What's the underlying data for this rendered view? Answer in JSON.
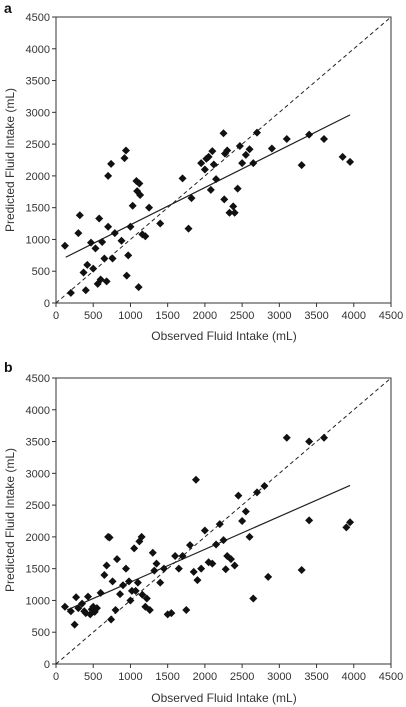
{
  "chart_data": [
    {
      "type": "scatter",
      "panel_label": "a",
      "xlabel": "Observed Fluid Intake (mL)",
      "ylabel": "Predicted Fluid Intake (mL)",
      "xlim": [
        0,
        4500
      ],
      "ylim": [
        0,
        4500
      ],
      "xticks": [
        0,
        500,
        1000,
        1500,
        2000,
        2500,
        3000,
        3500,
        4000,
        4500
      ],
      "yticks": [
        0,
        500,
        1000,
        1500,
        2000,
        2500,
        3000,
        3500,
        4000,
        4500
      ],
      "grid": false,
      "marker": "diamond",
      "points": [
        [
          120,
          900
        ],
        [
          200,
          160
        ],
        [
          300,
          1100
        ],
        [
          320,
          1380
        ],
        [
          370,
          480
        ],
        [
          400,
          200
        ],
        [
          420,
          600
        ],
        [
          470,
          950
        ],
        [
          500,
          540
        ],
        [
          530,
          860
        ],
        [
          560,
          300
        ],
        [
          580,
          1330
        ],
        [
          600,
          370
        ],
        [
          620,
          960
        ],
        [
          650,
          700
        ],
        [
          680,
          340
        ],
        [
          700,
          1200
        ],
        [
          700,
          2000
        ],
        [
          740,
          2190
        ],
        [
          760,
          700
        ],
        [
          790,
          1100
        ],
        [
          880,
          980
        ],
        [
          920,
          2280
        ],
        [
          940,
          2400
        ],
        [
          950,
          430
        ],
        [
          970,
          750
        ],
        [
          1000,
          1200
        ],
        [
          1030,
          1530
        ],
        [
          1080,
          1920
        ],
        [
          1090,
          1760
        ],
        [
          1110,
          250
        ],
        [
          1120,
          1880
        ],
        [
          1130,
          1700
        ],
        [
          1160,
          1080
        ],
        [
          1200,
          1050
        ],
        [
          1250,
          1500
        ],
        [
          1400,
          1250
        ],
        [
          1700,
          1960
        ],
        [
          1780,
          1170
        ],
        [
          1820,
          1650
        ],
        [
          1950,
          2200
        ],
        [
          2000,
          2100
        ],
        [
          2020,
          2270
        ],
        [
          2050,
          2300
        ],
        [
          2080,
          1780
        ],
        [
          2100,
          2390
        ],
        [
          2120,
          2180
        ],
        [
          2150,
          1950
        ],
        [
          2250,
          2670
        ],
        [
          2260,
          1630
        ],
        [
          2270,
          2350
        ],
        [
          2300,
          2400
        ],
        [
          2330,
          1420
        ],
        [
          2380,
          1520
        ],
        [
          2400,
          1420
        ],
        [
          2440,
          1800
        ],
        [
          2470,
          2470
        ],
        [
          2500,
          2200
        ],
        [
          2550,
          2330
        ],
        [
          2600,
          2420
        ],
        [
          2650,
          2200
        ],
        [
          2700,
          2680
        ],
        [
          2900,
          2430
        ],
        [
          3100,
          2580
        ],
        [
          3300,
          2170
        ],
        [
          3400,
          2650
        ],
        [
          3600,
          2580
        ],
        [
          3850,
          2300
        ],
        [
          3950,
          2220
        ]
      ],
      "reference_line": {
        "from": [
          0,
          0
        ],
        "to": [
          4500,
          4500
        ],
        "style": "dashed"
      },
      "fit_line": {
        "from": [
          130,
          720
        ],
        "to": [
          3950,
          2960
        ],
        "style": "solid"
      }
    },
    {
      "type": "scatter",
      "panel_label": "b",
      "xlabel": "Observed Fluid Intake (mL)",
      "ylabel": "Predicted Fluid Intake (mL)",
      "xlim": [
        0,
        4500
      ],
      "ylim": [
        0,
        4500
      ],
      "xticks": [
        0,
        500,
        1000,
        1500,
        2000,
        2500,
        3000,
        3500,
        4000,
        4500
      ],
      "yticks": [
        0,
        500,
        1000,
        1500,
        2000,
        2500,
        3000,
        3500,
        4000,
        4500
      ],
      "grid": false,
      "marker": "diamond",
      "points": [
        [
          120,
          900
        ],
        [
          200,
          830
        ],
        [
          250,
          620
        ],
        [
          270,
          1050
        ],
        [
          300,
          880
        ],
        [
          350,
          950
        ],
        [
          380,
          830
        ],
        [
          400,
          800
        ],
        [
          430,
          1060
        ],
        [
          460,
          780
        ],
        [
          480,
          860
        ],
        [
          500,
          900
        ],
        [
          520,
          820
        ],
        [
          550,
          880
        ],
        [
          600,
          1120
        ],
        [
          650,
          1400
        ],
        [
          680,
          1550
        ],
        [
          700,
          2000
        ],
        [
          720,
          1990
        ],
        [
          740,
          700
        ],
        [
          760,
          1300
        ],
        [
          800,
          850
        ],
        [
          820,
          1650
        ],
        [
          860,
          1100
        ],
        [
          900,
          1240
        ],
        [
          940,
          1500
        ],
        [
          980,
          1300
        ],
        [
          1000,
          1000
        ],
        [
          1020,
          1150
        ],
        [
          1050,
          1820
        ],
        [
          1070,
          1150
        ],
        [
          1100,
          1280
        ],
        [
          1120,
          1930
        ],
        [
          1150,
          2000
        ],
        [
          1160,
          1090
        ],
        [
          1200,
          900
        ],
        [
          1220,
          1030
        ],
        [
          1260,
          850
        ],
        [
          1300,
          1750
        ],
        [
          1320,
          1470
        ],
        [
          1350,
          1580
        ],
        [
          1400,
          1280
        ],
        [
          1450,
          1500
        ],
        [
          1500,
          780
        ],
        [
          1550,
          800
        ],
        [
          1600,
          1700
        ],
        [
          1650,
          1500
        ],
        [
          1700,
          1700
        ],
        [
          1750,
          850
        ],
        [
          1800,
          1870
        ],
        [
          1850,
          1450
        ],
        [
          1880,
          2900
        ],
        [
          1900,
          1320
        ],
        [
          1950,
          1500
        ],
        [
          2000,
          2100
        ],
        [
          2050,
          1600
        ],
        [
          2100,
          1580
        ],
        [
          2150,
          1880
        ],
        [
          2200,
          2200
        ],
        [
          2250,
          1950
        ],
        [
          2280,
          1490
        ],
        [
          2300,
          1700
        ],
        [
          2350,
          1650
        ],
        [
          2400,
          1550
        ],
        [
          2450,
          2650
        ],
        [
          2500,
          2250
        ],
        [
          2550,
          2400
        ],
        [
          2600,
          2000
        ],
        [
          2650,
          1030
        ],
        [
          2700,
          2700
        ],
        [
          2800,
          2800
        ],
        [
          2850,
          1370
        ],
        [
          3100,
          3560
        ],
        [
          3300,
          1480
        ],
        [
          3400,
          3500
        ],
        [
          3600,
          3560
        ],
        [
          3900,
          2150
        ],
        [
          3950,
          2230
        ],
        [
          3400,
          2260
        ]
      ],
      "reference_line": {
        "from": [
          0,
          0
        ],
        "to": [
          4500,
          4500
        ],
        "style": "dashed"
      },
      "fit_line": {
        "from": [
          150,
          850
        ],
        "to": [
          3950,
          2810
        ],
        "style": "solid"
      }
    }
  ]
}
